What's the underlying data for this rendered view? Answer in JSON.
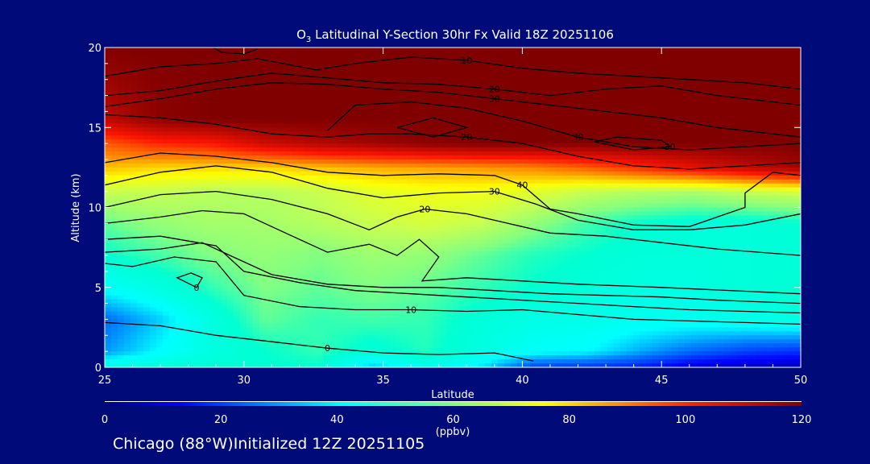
{
  "chart_data": {
    "type": "heatmap",
    "title": "O3 Latitudinal Y-Section 30hr  Fx Valid 18Z 20251106",
    "title_parts": {
      "species": "O",
      "subscript": "3",
      "rest": " Latitudinal Y-Section 30hr  Fx Valid 18Z 20251106"
    },
    "xlabel": "Latitude",
    "ylabel": "Altitude (km)",
    "xlim": [
      25,
      50
    ],
    "ylim": [
      0,
      20
    ],
    "x_ticks": [
      25,
      30,
      35,
      40,
      45,
      50
    ],
    "y_ticks": [
      0,
      5,
      10,
      15,
      20
    ],
    "colorbar": {
      "ticks": [
        0,
        20,
        40,
        60,
        80,
        100,
        120
      ],
      "units": "(ppbv)",
      "range": [
        0,
        120
      ]
    },
    "field_rows": [
      {
        "z": 0.0,
        "values": [
          48,
          50,
          52,
          52,
          52,
          35,
          45,
          38,
          20,
          18,
          15,
          8,
          5,
          4
        ]
      },
      {
        "z": 1.0,
        "values": [
          30,
          40,
          48,
          52,
          55,
          50,
          54,
          48,
          42,
          40,
          32,
          25,
          20,
          18
        ]
      },
      {
        "z": 3.0,
        "values": [
          25,
          35,
          48,
          58,
          55,
          56,
          55,
          50,
          47,
          46,
          44,
          44,
          46,
          48
        ]
      },
      {
        "z": 5.0,
        "values": [
          42,
          48,
          55,
          60,
          58,
          60,
          58,
          55,
          52,
          50,
          48,
          48,
          50,
          52
        ]
      },
      {
        "z": 7.0,
        "values": [
          52,
          56,
          60,
          62,
          60,
          63,
          62,
          58,
          54,
          52,
          50,
          50,
          50,
          50
        ]
      },
      {
        "z": 9.0,
        "values": [
          58,
          62,
          64,
          64,
          66,
          68,
          70,
          68,
          62,
          56,
          52,
          50,
          50,
          52
        ]
      },
      {
        "z": 11.0,
        "values": [
          68,
          68,
          66,
          66,
          68,
          72,
          74,
          74,
          72,
          68,
          66,
          65,
          68,
          70
        ]
      },
      {
        "z": 12.5,
        "values": [
          82,
          80,
          80,
          80,
          82,
          84,
          85,
          86,
          88,
          92,
          98,
          104,
          110,
          115
        ]
      },
      {
        "z": 14.0,
        "values": [
          92,
          98,
          100,
          108,
          112,
          115,
          118,
          120,
          120,
          120,
          120,
          120,
          120,
          120
        ]
      },
      {
        "z": 15.5,
        "values": [
          110,
          118,
          120,
          120,
          120,
          120,
          120,
          120,
          120,
          120,
          120,
          120,
          120,
          120
        ]
      },
      {
        "z": 20.0,
        "values": [
          120,
          120,
          120,
          120,
          120,
          120,
          120,
          120,
          120,
          120,
          120,
          120,
          120,
          120
        ]
      }
    ],
    "contours": [
      {
        "label": "0",
        "points": [
          [
            25,
            2.8
          ],
          [
            27,
            2.6
          ],
          [
            29,
            2.0
          ],
          [
            31,
            1.6
          ],
          [
            33,
            1.2
          ],
          [
            35,
            0.9
          ],
          [
            37,
            0.8
          ],
          [
            39,
            0.9
          ],
          [
            40.4,
            0.4
          ]
        ]
      },
      {
        "label": "0",
        "points": [
          [
            28.1,
            5.9
          ],
          [
            28.5,
            5.6
          ],
          [
            28.3,
            5.0
          ],
          [
            27.6,
            5.6
          ],
          [
            28.1,
            5.9
          ]
        ]
      },
      {
        "label": "10",
        "points": [
          [
            25,
            6.5
          ],
          [
            26,
            6.3
          ],
          [
            27.5,
            6.9
          ],
          [
            29,
            6.6
          ],
          [
            30,
            4.5
          ],
          [
            32,
            3.8
          ],
          [
            34,
            3.6
          ],
          [
            36,
            3.6
          ],
          [
            38,
            3.5
          ],
          [
            40,
            3.6
          ],
          [
            42,
            3.3
          ],
          [
            44,
            3.0
          ],
          [
            46,
            2.9
          ],
          [
            48,
            2.8
          ],
          [
            50,
            2.7
          ]
        ]
      },
      {
        "label": "",
        "points": [
          [
            25,
            8.0
          ],
          [
            27,
            8.2
          ],
          [
            29,
            7.6
          ],
          [
            30,
            6.0
          ],
          [
            32,
            5.3
          ],
          [
            34,
            4.8
          ],
          [
            36,
            4.6
          ],
          [
            38,
            4.4
          ],
          [
            40,
            4.2
          ],
          [
            42,
            4.0
          ],
          [
            44,
            3.8
          ],
          [
            46,
            3.6
          ],
          [
            48,
            3.5
          ],
          [
            50,
            3.4
          ]
        ]
      },
      {
        "label": "",
        "points": [
          [
            25,
            7.2
          ],
          [
            27,
            7.4
          ],
          [
            28.5,
            7.8
          ],
          [
            29.5,
            7.0
          ],
          [
            31,
            5.8
          ],
          [
            33,
            5.2
          ],
          [
            35,
            5.0
          ],
          [
            37,
            5.0
          ],
          [
            39,
            4.8
          ],
          [
            41,
            4.6
          ],
          [
            43,
            4.5
          ],
          [
            45,
            4.4
          ],
          [
            47,
            4.2
          ],
          [
            50,
            4.0
          ]
        ]
      },
      {
        "label": "20",
        "points": [
          [
            25,
            10.0
          ],
          [
            27,
            10.8
          ],
          [
            29,
            11.0
          ],
          [
            31,
            10.5
          ],
          [
            33,
            9.6
          ],
          [
            34.5,
            8.6
          ],
          [
            35.5,
            9.4
          ],
          [
            36.5,
            9.9
          ],
          [
            38,
            9.6
          ],
          [
            39.5,
            9.0
          ],
          [
            41,
            8.4
          ],
          [
            43,
            8.2
          ],
          [
            45,
            7.8
          ],
          [
            47,
            7.4
          ],
          [
            50,
            7.0
          ]
        ]
      },
      {
        "label": "",
        "points": [
          [
            25,
            9.0
          ],
          [
            27,
            9.4
          ],
          [
            28.5,
            9.8
          ],
          [
            30,
            9.6
          ],
          [
            31.5,
            8.4
          ],
          [
            33,
            7.2
          ],
          [
            34.5,
            7.7
          ],
          [
            35.5,
            7.0
          ],
          [
            36.3,
            8.0
          ],
          [
            37,
            6.9
          ],
          [
            36.4,
            5.4
          ],
          [
            38,
            5.6
          ],
          [
            40,
            5.4
          ],
          [
            42,
            5.2
          ],
          [
            45,
            5.0
          ],
          [
            50,
            4.6
          ]
        ]
      },
      {
        "label": "30",
        "points": [
          [
            25,
            11.4
          ],
          [
            27,
            12.2
          ],
          [
            29,
            12.6
          ],
          [
            31,
            12.2
          ],
          [
            33,
            11.2
          ],
          [
            35,
            10.6
          ],
          [
            37,
            10.9
          ],
          [
            39,
            11.0
          ],
          [
            40.5,
            10.2
          ],
          [
            42,
            9.2
          ],
          [
            44,
            8.6
          ],
          [
            46,
            8.6
          ],
          [
            48,
            8.9
          ],
          [
            50,
            9.6
          ]
        ]
      },
      {
        "label": "40",
        "points": [
          [
            25,
            12.8
          ],
          [
            27,
            13.4
          ],
          [
            29,
            13.2
          ],
          [
            31,
            12.8
          ],
          [
            33,
            12.2
          ],
          [
            35,
            12.0
          ],
          [
            37,
            12.1
          ],
          [
            39,
            12.0
          ],
          [
            40,
            11.4
          ],
          [
            41,
            9.9
          ],
          [
            42,
            9.6
          ],
          [
            44,
            8.9
          ],
          [
            46,
            8.8
          ],
          [
            48,
            10.0
          ],
          [
            48,
            10.9
          ],
          [
            49,
            12.2
          ],
          [
            50,
            12.0
          ]
        ]
      },
      {
        "label": "20",
        "points": [
          [
            25,
            15.8
          ],
          [
            27,
            15.6
          ],
          [
            29,
            15.2
          ],
          [
            31,
            14.6
          ],
          [
            33,
            14.4
          ],
          [
            34.5,
            14.6
          ],
          [
            36,
            14.6
          ],
          [
            38,
            14.4
          ],
          [
            40,
            14.0
          ],
          [
            42,
            13.2
          ],
          [
            44,
            12.6
          ],
          [
            46,
            12.4
          ],
          [
            48,
            12.6
          ],
          [
            50,
            12.8
          ]
        ]
      },
      {
        "label": "30",
        "points": [
          [
            25,
            16.3
          ],
          [
            27,
            16.8
          ],
          [
            29,
            17.4
          ],
          [
            31,
            17.8
          ],
          [
            33,
            17.7
          ],
          [
            35,
            17.4
          ],
          [
            37,
            17.2
          ],
          [
            39,
            16.8
          ],
          [
            41,
            16.4
          ],
          [
            43,
            16.0
          ],
          [
            45,
            15.6
          ],
          [
            47,
            15.0
          ],
          [
            49,
            14.6
          ],
          [
            50,
            14.4
          ]
        ]
      },
      {
        "label": "30",
        "points": [
          [
            33,
            14.8
          ],
          [
            34,
            16.4
          ],
          [
            36,
            16.6
          ],
          [
            38,
            16.2
          ],
          [
            40,
            15.4
          ],
          [
            42,
            14.4
          ],
          [
            44,
            13.8
          ],
          [
            46,
            13.6
          ],
          [
            48,
            13.8
          ],
          [
            50,
            14.0
          ]
        ]
      },
      {
        "label": "",
        "points": [
          [
            35.5,
            15.0
          ],
          [
            36.8,
            15.6
          ],
          [
            38,
            15.0
          ],
          [
            36.8,
            14.4
          ],
          [
            35.5,
            15.0
          ]
        ]
      },
      {
        "label": "30",
        "points": [
          [
            42.6,
            14.1
          ],
          [
            43.4,
            14.4
          ],
          [
            45,
            14.2
          ],
          [
            45.3,
            13.8
          ],
          [
            44,
            13.6
          ],
          [
            42.6,
            14.1
          ]
        ]
      },
      {
        "label": "10",
        "points": [
          [
            25,
            18.2
          ],
          [
            27,
            18.8
          ],
          [
            29,
            19.0
          ],
          [
            30.5,
            19.3
          ],
          [
            32.6,
            18.6
          ],
          [
            34,
            19.0
          ],
          [
            36,
            19.4
          ],
          [
            38,
            19.2
          ],
          [
            40,
            18.7
          ],
          [
            42,
            18.4
          ],
          [
            44,
            18.2
          ],
          [
            46,
            18.0
          ],
          [
            48,
            17.8
          ],
          [
            50,
            17.4
          ]
        ]
      },
      {
        "label": "20",
        "points": [
          [
            25,
            17.0
          ],
          [
            27,
            17.3
          ],
          [
            29,
            17.9
          ],
          [
            31,
            18.4
          ],
          [
            33,
            18.1
          ],
          [
            35,
            17.8
          ],
          [
            37,
            17.7
          ],
          [
            39,
            17.4
          ],
          [
            41,
            17.0
          ],
          [
            43,
            17.4
          ],
          [
            45,
            17.6
          ],
          [
            47,
            17.0
          ],
          [
            49,
            16.6
          ],
          [
            50,
            16.4
          ]
        ]
      },
      {
        "label": "",
        "points": [
          [
            28.9,
            20
          ],
          [
            29.2,
            19.7
          ],
          [
            30,
            19.6
          ],
          [
            30.5,
            19.9
          ]
        ]
      }
    ],
    "annotations": [
      "0",
      "0",
      "10",
      "10",
      "20",
      "20",
      "20",
      "30",
      "30",
      "30",
      "40",
      "10",
      "20"
    ]
  },
  "footer": {
    "caption": "Chicago (88°W)Initialized 12Z 20251105"
  }
}
